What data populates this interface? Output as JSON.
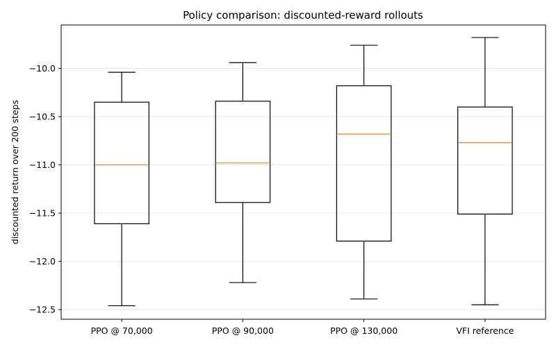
{
  "chart_data": {
    "type": "box",
    "title": "Policy comparison: discounted-reward rollouts",
    "xlabel": "",
    "ylabel": "discounted return over 200 steps",
    "ylim": [
      -12.6,
      -9.55
    ],
    "yticks": [
      -10.0,
      -10.5,
      -11.0,
      -11.5,
      -12.0,
      -12.5
    ],
    "ytick_labels": [
      "−10.0",
      "−10.5",
      "−11.0",
      "−11.5",
      "−12.0",
      "−12.5"
    ],
    "grid": "horizontal",
    "categories": [
      "PPO @ 70,000",
      "PPO @ 90,000",
      "PPO @ 130,000",
      "VFI reference"
    ],
    "boxes": [
      {
        "whisker_low": -12.46,
        "q1": -11.61,
        "median": -11.0,
        "q3": -10.35,
        "whisker_high": -10.04
      },
      {
        "whisker_low": -12.22,
        "q1": -11.39,
        "median": -10.98,
        "q3": -10.34,
        "whisker_high": -9.94
      },
      {
        "whisker_low": -12.39,
        "q1": -11.79,
        "median": -10.68,
        "q3": -10.18,
        "whisker_high": -9.76
      },
      {
        "whisker_low": -12.45,
        "q1": -11.51,
        "median": -10.77,
        "q3": -10.4,
        "whisker_high": -9.68
      }
    ],
    "colors": {
      "box": "#000000",
      "median": "#ff7f0e",
      "grid": "#e6e6e6"
    }
  }
}
